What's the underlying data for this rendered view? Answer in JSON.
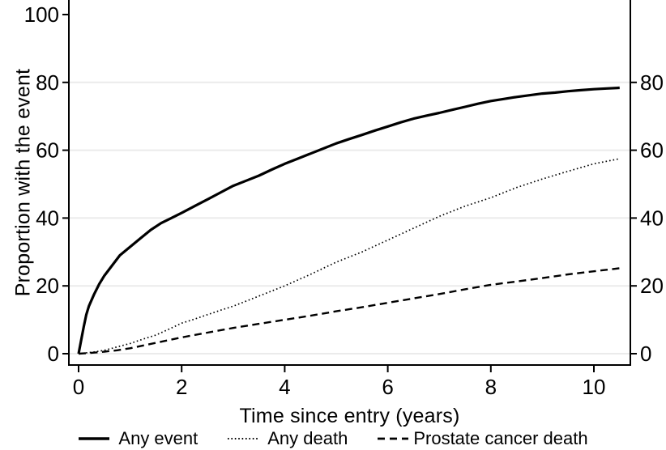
{
  "figure": {
    "background": "#ffffff",
    "axis_color": "#000000",
    "grid_color": "#ebebeb",
    "text_color": "#000000"
  },
  "chart_data": {
    "type": "line",
    "title": "",
    "xlabel": "Time since entry (years)",
    "ylabel": "Proportion with the event",
    "xlim": [
      0,
      10.7
    ],
    "ylim": [
      0,
      104
    ],
    "x_ticks": [
      0,
      2,
      4,
      6,
      8,
      10
    ],
    "y_ticks_left": [
      0,
      20,
      40,
      60,
      80,
      100
    ],
    "y_ticks_right": [
      0,
      20,
      40,
      60,
      80
    ],
    "grid_y": [
      0,
      20,
      40,
      60,
      80
    ],
    "grid": true,
    "legend_position": "bottom",
    "series": [
      {
        "name": "Any event",
        "line_style": "solid",
        "points": [
          [
            0,
            0
          ],
          [
            0.05,
            4
          ],
          [
            0.1,
            8
          ],
          [
            0.15,
            11.5
          ],
          [
            0.2,
            14
          ],
          [
            0.3,
            17.5
          ],
          [
            0.4,
            20.5
          ],
          [
            0.5,
            23
          ],
          [
            0.65,
            26
          ],
          [
            0.8,
            29
          ],
          [
            1,
            31.5
          ],
          [
            1.2,
            34
          ],
          [
            1.4,
            36.5
          ],
          [
            1.6,
            38.5
          ],
          [
            1.8,
            40
          ],
          [
            2,
            41.5
          ],
          [
            2.25,
            43.5
          ],
          [
            2.5,
            45.5
          ],
          [
            2.75,
            47.5
          ],
          [
            3,
            49.5
          ],
          [
            3.25,
            51
          ],
          [
            3.5,
            52.5
          ],
          [
            3.75,
            54.3
          ],
          [
            4,
            56
          ],
          [
            4.25,
            57.5
          ],
          [
            4.5,
            59
          ],
          [
            4.75,
            60.5
          ],
          [
            5,
            62
          ],
          [
            5.25,
            63.3
          ],
          [
            5.5,
            64.5
          ],
          [
            5.75,
            65.8
          ],
          [
            6,
            67
          ],
          [
            6.25,
            68.2
          ],
          [
            6.5,
            69.3
          ],
          [
            6.75,
            70.2
          ],
          [
            7,
            71
          ],
          [
            7.25,
            71.9
          ],
          [
            7.5,
            72.8
          ],
          [
            7.75,
            73.7
          ],
          [
            8,
            74.5
          ],
          [
            8.25,
            75.1
          ],
          [
            8.5,
            75.7
          ],
          [
            8.75,
            76.2
          ],
          [
            9,
            76.7
          ],
          [
            9.25,
            77
          ],
          [
            9.5,
            77.4
          ],
          [
            9.75,
            77.7
          ],
          [
            10,
            78
          ],
          [
            10.25,
            78.2
          ],
          [
            10.5,
            78.4
          ]
        ]
      },
      {
        "name": "Any death",
        "line_style": "dotted",
        "points": [
          [
            0,
            0
          ],
          [
            0.3,
            0.5
          ],
          [
            0.5,
            1
          ],
          [
            0.75,
            2
          ],
          [
            1,
            3
          ],
          [
            1.25,
            4.3
          ],
          [
            1.5,
            5.5
          ],
          [
            1.75,
            7.2
          ],
          [
            2,
            9
          ],
          [
            2.25,
            10.2
          ],
          [
            2.5,
            11.5
          ],
          [
            2.75,
            12.8
          ],
          [
            3,
            14
          ],
          [
            3.25,
            15.5
          ],
          [
            3.5,
            17
          ],
          [
            3.75,
            18.5
          ],
          [
            4,
            20
          ],
          [
            4.25,
            21.7
          ],
          [
            4.5,
            23.4
          ],
          [
            4.75,
            25.2
          ],
          [
            5,
            27
          ],
          [
            5.5,
            30
          ],
          [
            6,
            33.5
          ],
          [
            6.5,
            37
          ],
          [
            7,
            40.5
          ],
          [
            7.5,
            43.5
          ],
          [
            8,
            46
          ],
          [
            8.5,
            49
          ],
          [
            9,
            51.5
          ],
          [
            9.5,
            53.8
          ],
          [
            10,
            56
          ],
          [
            10.5,
            57.5
          ]
        ]
      },
      {
        "name": "Prostate cancer death",
        "line_style": "dashed",
        "points": [
          [
            0,
            0
          ],
          [
            0.3,
            0.3
          ],
          [
            0.5,
            0.6
          ],
          [
            0.75,
            1
          ],
          [
            1,
            1.6
          ],
          [
            1.25,
            2.4
          ],
          [
            1.5,
            3.2
          ],
          [
            2,
            4.8
          ],
          [
            2.5,
            6.2
          ],
          [
            3,
            7.6
          ],
          [
            3.5,
            8.8
          ],
          [
            4,
            10
          ],
          [
            4.5,
            11.2
          ],
          [
            5,
            12.5
          ],
          [
            5.5,
            13.7
          ],
          [
            6,
            15
          ],
          [
            6.5,
            16.3
          ],
          [
            7,
            17.6
          ],
          [
            7.5,
            19
          ],
          [
            8,
            20.3
          ],
          [
            8.5,
            21.3
          ],
          [
            9,
            22.3
          ],
          [
            9.5,
            23.4
          ],
          [
            10,
            24.3
          ],
          [
            10.5,
            25.2
          ]
        ]
      }
    ]
  }
}
